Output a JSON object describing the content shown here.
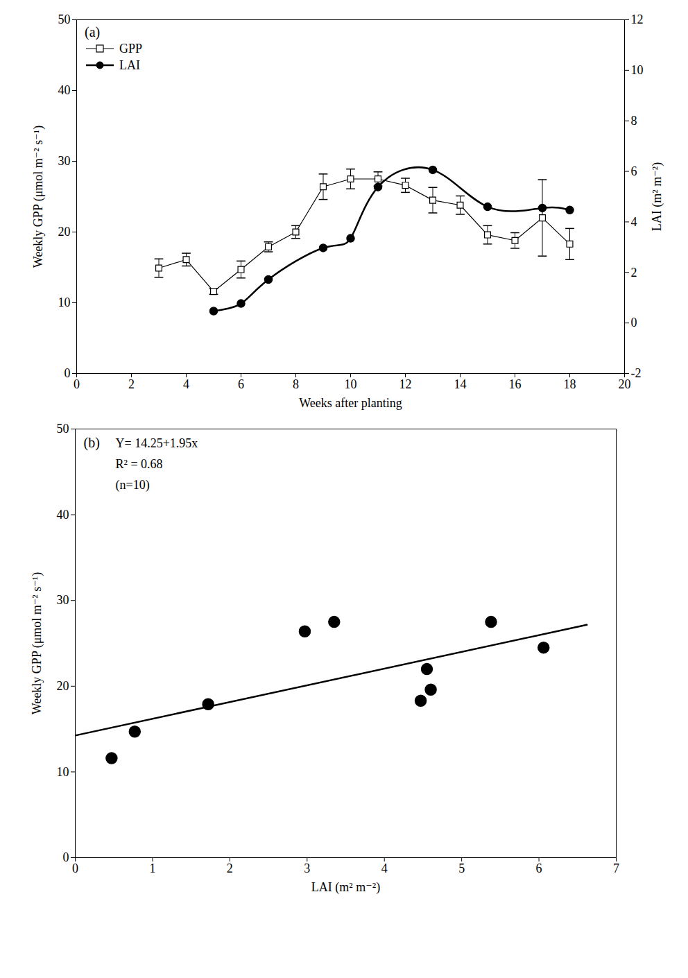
{
  "chart_data": [
    {
      "type": "line",
      "label": "(a)",
      "x_label": "Weeks after planting",
      "y_label": "Weekly GPP (μmol m⁻² s⁻¹)",
      "y2_label": "LAI (m² m⁻²)",
      "xlim": [
        0,
        20
      ],
      "xticks": [
        0,
        2,
        4,
        6,
        8,
        10,
        12,
        14,
        16,
        18,
        20
      ],
      "ylim": [
        0,
        50
      ],
      "yticks": [
        0,
        10,
        20,
        30,
        40,
        50
      ],
      "y2lim": [
        -2,
        12
      ],
      "y2ticks": [
        -2,
        0,
        2,
        4,
        6,
        8,
        10,
        12
      ],
      "legend": "upper left",
      "grid": false,
      "series": [
        {
          "name": "GPP",
          "type": "line",
          "color": "#000000",
          "marker": "square-open",
          "line_style": "solid",
          "axis": "y",
          "x": [
            3,
            4,
            5,
            6,
            7,
            8,
            9,
            10,
            11,
            12,
            13,
            14,
            15,
            16,
            17,
            18
          ],
          "values": [
            14.9,
            16.1,
            11.6,
            14.7,
            17.9,
            20.0,
            26.4,
            27.5,
            27.5,
            26.6,
            24.5,
            23.8,
            19.6,
            18.8,
            22.0,
            18.3
          ],
          "error": [
            1.3,
            0.9,
            0.4,
            1.2,
            0.7,
            0.9,
            1.8,
            1.4,
            1.0,
            1.0,
            1.8,
            1.3,
            1.3,
            1.1,
            5.4,
            2.2
          ]
        },
        {
          "name": "LAI",
          "type": "line",
          "color": "#000000",
          "marker": "circle",
          "line_style": "smooth",
          "axis": "y2",
          "x": [
            5,
            6,
            7,
            9,
            10,
            11,
            13,
            15,
            17,
            18
          ],
          "values": [
            0.47,
            0.77,
            1.72,
            2.97,
            3.35,
            5.38,
            6.06,
            4.6,
            4.55,
            4.47
          ]
        }
      ]
    },
    {
      "type": "scatter",
      "label": "(b)",
      "x_label": "LAI (m² m⁻²)",
      "y_label": "Weekly GPP (μmol m⁻² s⁻¹)",
      "annotations": [
        "Y= 14.25+1.95x",
        "R² = 0.68",
        "(n=10)"
      ],
      "xlim": [
        0,
        7
      ],
      "xticks": [
        0,
        1,
        2,
        3,
        4,
        5,
        6,
        7
      ],
      "ylim": [
        0,
        50
      ],
      "yticks": [
        0,
        10,
        20,
        30,
        40,
        50
      ],
      "grid": false,
      "color": "#000000",
      "marker": "circle",
      "x": [
        0.47,
        0.77,
        1.72,
        2.97,
        3.35,
        5.38,
        6.06,
        4.6,
        4.55,
        4.47
      ],
      "values": [
        11.6,
        14.7,
        17.9,
        26.4,
        27.5,
        27.5,
        24.5,
        19.6,
        22.0,
        18.3
      ],
      "fit": {
        "x": [
          0,
          6.62
        ],
        "values": [
          14.25,
          27.16
        ]
      }
    }
  ]
}
